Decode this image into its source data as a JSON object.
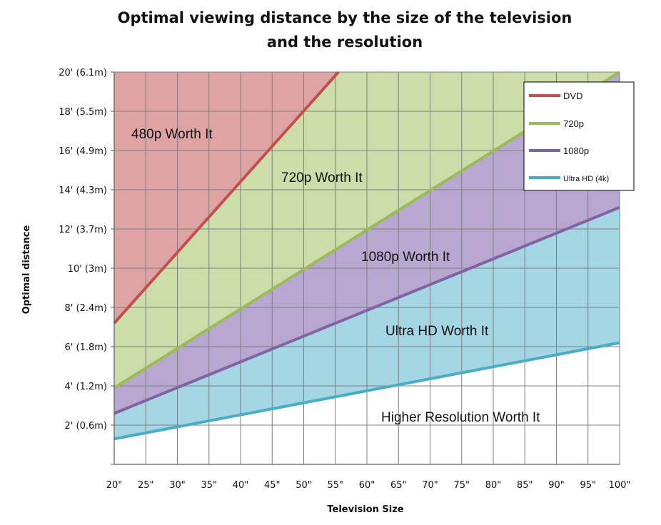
{
  "chart_data": {
    "type": "area",
    "title_line1": "Optimal viewing distance by the size of the television",
    "title_line2": "and the resolution",
    "xlabel": "Television Size",
    "ylabel": "Optimal distance",
    "x": [
      20,
      25,
      30,
      35,
      40,
      45,
      50,
      55,
      60,
      65,
      70,
      75,
      80,
      85,
      90,
      95,
      100
    ],
    "x_tick_labels": [
      "20\"",
      "25\"",
      "30\"",
      "35\"",
      "40\"",
      "45\"",
      "50\"",
      "55\"",
      "60\"",
      "65\"",
      "70\"",
      "75\"",
      "80\"",
      "85\"",
      "90\"",
      "95\"",
      "100\""
    ],
    "xlim": [
      20,
      100
    ],
    "y_ticks": [
      2,
      4,
      6,
      8,
      10,
      12,
      14,
      16,
      18,
      20
    ],
    "y_tick_labels": [
      "2' (0.6m)",
      "4' (1.2m)",
      "6' (1.8m)",
      "8' (2.4m)",
      "10' (3m)",
      "12' (3.7m)",
      "14' (4.3m)",
      "16' (4.9m)",
      "18' (5.5m)",
      "20' (6.1m)"
    ],
    "ylim": [
      0,
      20
    ],
    "series": [
      {
        "name": "DVD",
        "color": "#c0504d",
        "fill": "#e0a3a3",
        "x": [
          20,
          55.5
        ],
        "y": [
          7.2,
          20
        ]
      },
      {
        "name": "720p",
        "color": "#9bbb59",
        "fill": "#cdddaa",
        "x": [
          20,
          100
        ],
        "y": [
          3.9,
          20
        ]
      },
      {
        "name": "1080p",
        "color": "#8064a2",
        "fill": "#b8a7d0",
        "x": [
          20,
          100
        ],
        "y": [
          2.6,
          13.1
        ]
      },
      {
        "name": "Ultra HD (4k)",
        "color": "#4bacc6",
        "fill": "#a4d6e3",
        "x": [
          20,
          100
        ],
        "y": [
          1.3,
          6.2
        ]
      }
    ],
    "region_labels": [
      "480p Worth It",
      "720p Worth It",
      "1080p Worth It",
      "Ultra HD Worth It",
      "Higher Resolution Worth It"
    ],
    "legend": [
      "DVD",
      "720p",
      "1080p",
      "Ultra HD (4k)"
    ],
    "legend_position": "top-right",
    "grid": true
  }
}
